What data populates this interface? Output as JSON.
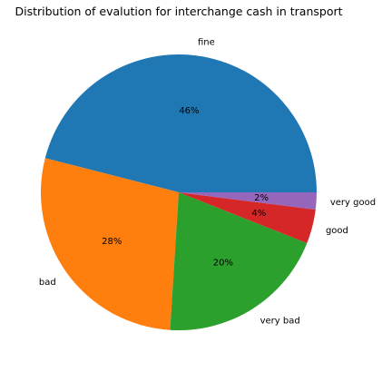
{
  "chart_data": {
    "type": "pie",
    "title": "Distribution of evalution for interchange cash in transport",
    "categories": [
      "fine",
      "bad",
      "very bad",
      "good",
      "very good"
    ],
    "values": [
      46,
      28,
      20,
      4,
      2
    ],
    "percent_labels": [
      "46%",
      "28%",
      "20%",
      "4%",
      "2%"
    ],
    "colors": [
      "#1f77b4",
      "#ff7f0e",
      "#2ca02c",
      "#d62728",
      "#9467bd"
    ],
    "start_angle_deg": 0,
    "direction": "counterclockwise"
  }
}
